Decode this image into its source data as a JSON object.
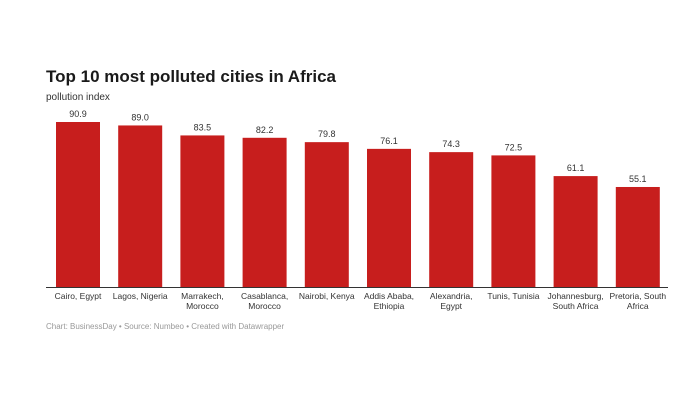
{
  "chart_data": {
    "type": "bar",
    "title": "Top 10 most polluted cities in Africa",
    "subtitle": "pollution index",
    "categories": [
      [
        "Cairo, Egypt"
      ],
      [
        "Lagos, Nigeria"
      ],
      [
        "Marrakech,",
        "Morocco"
      ],
      [
        "Casablanca,",
        "Morocco"
      ],
      [
        "Nairobi, Kenya"
      ],
      [
        "Addis Ababa,",
        "Ethiopia"
      ],
      [
        "Alexandria,",
        "Egypt"
      ],
      [
        "Tunis, Tunisia"
      ],
      [
        "Johannesburg,",
        "South Africa"
      ],
      [
        "Pretoria, South",
        "Africa"
      ]
    ],
    "values": [
      90.9,
      89.0,
      83.5,
      82.2,
      79.8,
      76.1,
      74.3,
      72.5,
      61.1,
      55.1
    ],
    "value_labels": [
      "90.9",
      "89.0",
      "83.5",
      "82.2",
      "79.8",
      "76.1",
      "74.3",
      "72.5",
      "61.1",
      "55.1"
    ],
    "ylim": [
      0,
      90.9
    ],
    "grid": false,
    "bar_color": "#c71e1d"
  },
  "footer": "Chart: BusinessDay • Source: Numbeo • Created with Datawrapper"
}
